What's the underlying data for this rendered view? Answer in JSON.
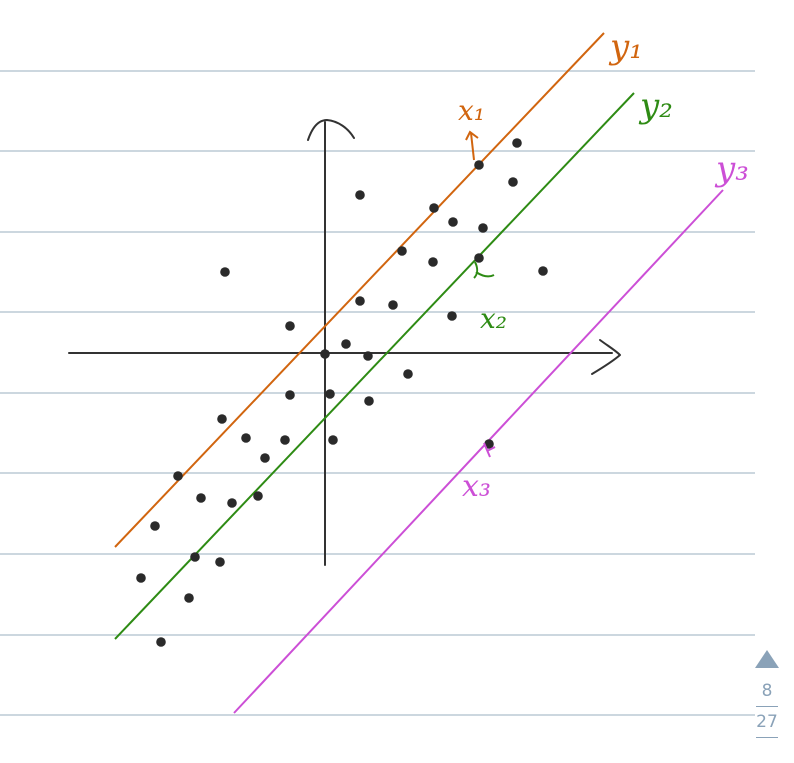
{
  "colors": {
    "background": "#ffffff",
    "ruled_lines": "#aebfcc",
    "axes": "#333333",
    "points": "#2a2a2a",
    "y1": "#d1650f",
    "y2": "#2e8b14",
    "y3": "#cc4fd6",
    "pager": "#8aa2b8"
  },
  "labels": {
    "y1": "y₁",
    "y2": "y₂",
    "y3": "y₃",
    "x1": "x₁",
    "x2": "x₂",
    "x3": "x₃"
  },
  "pager": {
    "current": "8",
    "total": "27",
    "up_icon": "triangle-up-icon"
  }
}
